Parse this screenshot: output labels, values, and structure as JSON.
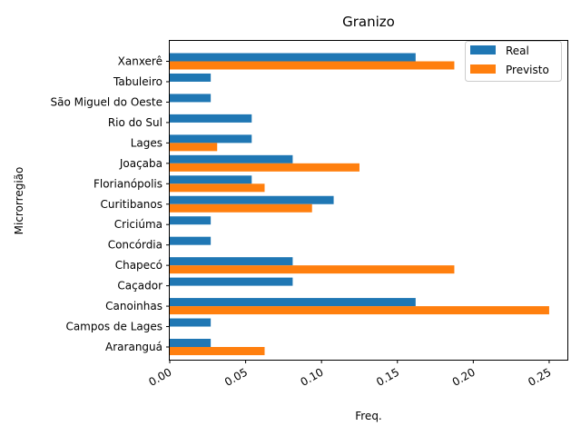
{
  "chart_data": {
    "type": "bar",
    "orientation": "horizontal",
    "title": "Granizo",
    "xlabel": "Freq.",
    "ylabel": "Microrregião",
    "xlim": [
      0,
      0.262
    ],
    "xticks": [
      "0.00",
      "0.05",
      "0.10",
      "0.15",
      "0.20",
      "0.25"
    ],
    "xtick_values": [
      0,
      0.05,
      0.1,
      0.15,
      0.2,
      0.25
    ],
    "categories": [
      "Araranguá",
      "Campos de Lages",
      "Canoinhas",
      "Caçador",
      "Chapecó",
      "Concórdia",
      "Criciúma",
      "Curitibanos",
      "Florianópolis",
      "Joaçaba",
      "Lages",
      "Rio do Sul",
      "São Miguel do Oeste",
      "Tabuleiro",
      "Xanxerê"
    ],
    "series": [
      {
        "name": "Real",
        "color": "#1f77b4",
        "values": [
          0.027,
          0.027,
          0.162,
          0.081,
          0.081,
          0.027,
          0.027,
          0.108,
          0.054,
          0.081,
          0.054,
          0.054,
          0.027,
          0.027,
          0.162
        ]
      },
      {
        "name": "Previsto",
        "color": "#ff7f0e",
        "values": [
          0.0625,
          0,
          0.25,
          0,
          0.1875,
          0,
          0,
          0.09375,
          0.0625,
          0.125,
          0.03125,
          0,
          0,
          0,
          0.1875
        ]
      }
    ],
    "legend_position": "top-right",
    "grid": false
  }
}
